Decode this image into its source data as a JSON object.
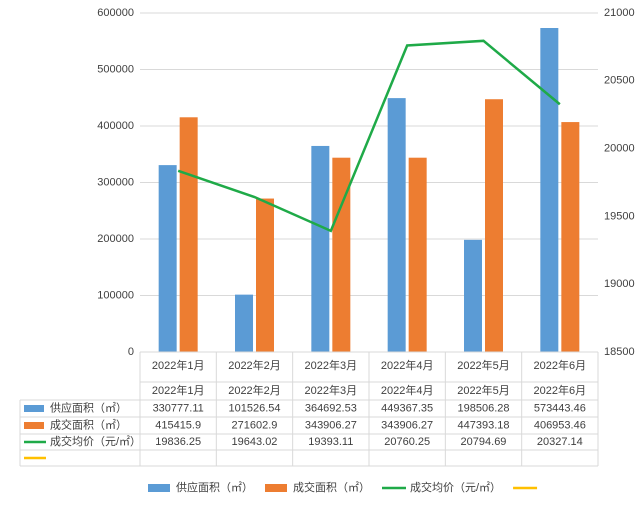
{
  "chart_data": {
    "type": "bar",
    "categories": [
      "2022年1月",
      "2022年2月",
      "2022年3月",
      "2022年4月",
      "2022年5月",
      "2022年6月"
    ],
    "series": [
      {
        "name": "供应面积（㎡）",
        "color": "#5b9bd5",
        "type": "bar",
        "values": [
          330777.11,
          101526.54,
          364692.53,
          449367.35,
          198506.28,
          573443.46
        ]
      },
      {
        "name": "成交面积（㎡）",
        "color": "#ed7d31",
        "type": "bar",
        "values": [
          415415.9,
          271602.9,
          343906.27,
          343906.27,
          447393.18,
          406953.46
        ]
      },
      {
        "name": "成交均价（元/㎡）",
        "color": "#1faa48",
        "type": "line",
        "axis": "y2",
        "values": [
          19836.25,
          19643.02,
          19393.11,
          20760.25,
          20794.69,
          20327.14
        ]
      },
      {
        "color": "#ffc000",
        "type": "line",
        "axis": "y2",
        "values": [
          null,
          null,
          null,
          null,
          null,
          null
        ]
      }
    ],
    "ylim": [
      0,
      600000
    ],
    "yticks": [
      0,
      100000,
      200000,
      300000,
      400000,
      500000,
      600000
    ],
    "y2lim": [
      18500,
      21000
    ],
    "y2ticks": [
      18500,
      19000,
      19500,
      20000,
      20500,
      21000
    ],
    "grid": true,
    "data_table": true,
    "legend": "bottom"
  }
}
